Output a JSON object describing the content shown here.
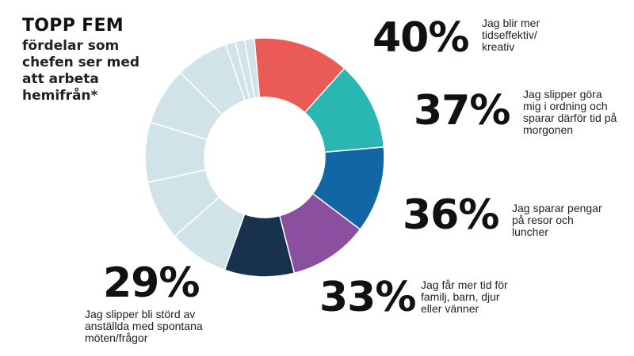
{
  "header": {
    "title": "TOPP FEM",
    "subtitle": "fördelar som chefen ser med att arbeta hemifrån*"
  },
  "colors": {
    "other": "#cfe3e8",
    "series": [
      "#eb5b55",
      "#2ab7b3",
      "#1266a3",
      "#8b4fa0",
      "#17314f"
    ]
  },
  "chart_data": {
    "type": "pie",
    "title": "TOPP FEM",
    "subtitle": "fördelar som chefen ser med att arbeta hemifrån*",
    "legend": "labels-around",
    "slices": [
      {
        "value": 40,
        "label": "40%",
        "text": "Jag blir mer tidseffektiv/ kreativ",
        "color": "#eb5b55"
      },
      {
        "value": 37,
        "label": "37%",
        "text": "Jag slipper göra mig i ordning och sparar därför tid på morgonen",
        "color": "#2ab7b3"
      },
      {
        "value": 36,
        "label": "36%",
        "text": "Jag sparar pengar på resor och luncher",
        "color": "#1266a3"
      },
      {
        "value": 33,
        "label": "33%",
        "text": "Jag får mer tid för familj, barn, djur eller vänner",
        "color": "#8b4fa0"
      },
      {
        "value": 29,
        "label": "29%",
        "text": "Jag slipper bli störd av anställda med spontana möten/frågor",
        "color": "#17314f"
      }
    ],
    "other_slices": [
      25,
      25,
      25,
      24,
      22,
      4,
      4,
      4
    ]
  }
}
